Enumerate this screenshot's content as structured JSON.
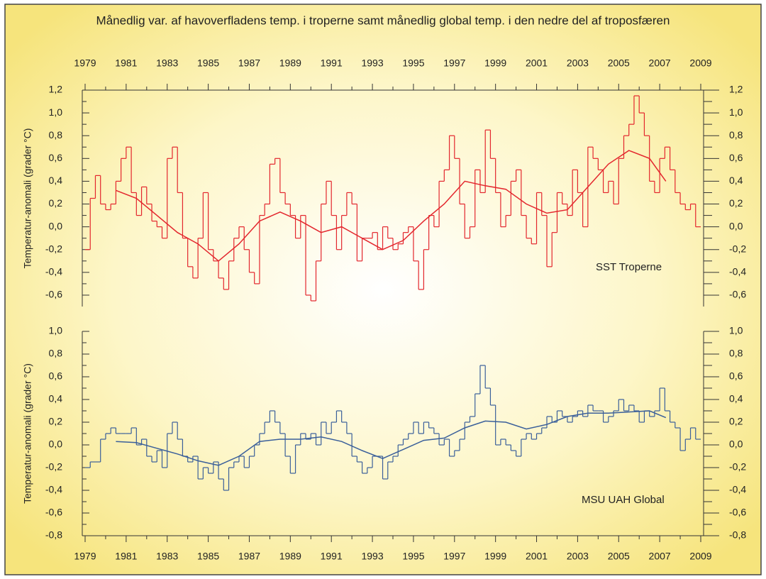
{
  "chart_data": [
    {
      "type": "line",
      "title": "Månedlig var. af havoverfladens temp. i troperne samt månedlig global temp. i den nedre del af troposfæren",
      "y_label": "Temperatur-anomali (grader °C)",
      "xlim": [
        1979,
        2009
      ],
      "xticks": [
        1979,
        1981,
        1983,
        1985,
        1987,
        1989,
        1991,
        1993,
        1995,
        1997,
        1999,
        2001,
        2003,
        2005,
        2007,
        2009
      ],
      "ylim": [
        -0.7,
        1.2
      ],
      "yticks": [
        {
          "value": -0.6,
          "label": "-0,6"
        },
        {
          "value": -0.4,
          "label": "-0,4"
        },
        {
          "value": -0.2,
          "label": "-0,2"
        },
        {
          "value": 0,
          "label": "0,0"
        },
        {
          "value": 0.2,
          "label": "0,2"
        },
        {
          "value": 0.4,
          "label": "0,4"
        },
        {
          "value": 0.6,
          "label": "0,6"
        },
        {
          "value": 0.8,
          "label": "0,8"
        },
        {
          "value": 1.0,
          "label": "1,0"
        },
        {
          "value": 1.2,
          "label": "1,2"
        }
      ],
      "x": [
        1979,
        1979.25,
        1979.5,
        1979.75,
        1980,
        1980.25,
        1980.5,
        1980.75,
        1981,
        1981.25,
        1981.5,
        1981.75,
        1982,
        1982.25,
        1982.5,
        1982.75,
        1983,
        1983.25,
        1983.5,
        1983.75,
        1984,
        1984.25,
        1984.5,
        1984.75,
        1985,
        1985.25,
        1985.5,
        1985.75,
        1986,
        1986.25,
        1986.5,
        1986.75,
        1987,
        1987.25,
        1987.5,
        1987.75,
        1988,
        1988.25,
        1988.5,
        1988.75,
        1989,
        1989.25,
        1989.5,
        1989.75,
        1990,
        1990.25,
        1990.5,
        1990.75,
        1991,
        1991.25,
        1991.5,
        1991.75,
        1992,
        1992.25,
        1992.5,
        1992.75,
        1993,
        1993.25,
        1993.5,
        1993.75,
        1994,
        1994.25,
        1994.5,
        1994.75,
        1995,
        1995.25,
        1995.5,
        1995.75,
        1996,
        1996.25,
        1996.5,
        1996.75,
        1997,
        1997.25,
        1997.5,
        1997.75,
        1998,
        1998.25,
        1998.5,
        1998.75,
        1999,
        1999.25,
        1999.5,
        1999.75,
        2000,
        2000.25,
        2000.5,
        2000.75,
        2001,
        2001.25,
        2001.5,
        2001.75,
        2002,
        2002.25,
        2002.5,
        2002.75,
        2003,
        2003.25,
        2003.5,
        2003.75,
        2004,
        2004.25,
        2004.5,
        2004.75,
        2005,
        2005.25,
        2005.5,
        2005.75,
        2006,
        2006.25,
        2006.5,
        2006.75,
        2007,
        2007.25,
        2007.5,
        2007.75,
        2008,
        2008.25,
        2008.5,
        2008.75
      ],
      "series": [
        {
          "name": "SST Troperne",
          "color": "#e3262d",
          "values": [
            -0.2,
            0.25,
            0.45,
            0.2,
            0.15,
            0.2,
            0.4,
            0.6,
            0.7,
            0.3,
            0.1,
            0.35,
            0.2,
            0.05,
            0.0,
            -0.1,
            0.6,
            0.7,
            0.3,
            -0.1,
            -0.35,
            -0.45,
            -0.1,
            0.3,
            -0.2,
            -0.3,
            -0.45,
            -0.55,
            -0.3,
            -0.1,
            0.0,
            -0.2,
            -0.4,
            -0.5,
            0.1,
            0.2,
            0.55,
            0.6,
            0.3,
            0.2,
            0.1,
            -0.1,
            0.1,
            -0.6,
            -0.65,
            -0.3,
            0.2,
            0.4,
            0.1,
            -0.2,
            0.1,
            0.3,
            0.2,
            -0.3,
            -0.1,
            -0.1,
            -0.05,
            -0.2,
            0.0,
            -0.1,
            -0.2,
            -0.15,
            -0.05,
            0.0,
            -0.3,
            -0.55,
            -0.2,
            0.1,
            0.0,
            0.4,
            0.5,
            0.8,
            0.6,
            0.2,
            -0.1,
            0.0,
            0.5,
            0.3,
            0.85,
            0.6,
            0.3,
            0.0,
            0.1,
            0.4,
            0.5,
            0.1,
            -0.1,
            -0.15,
            0.3,
            0.1,
            -0.35,
            -0.05,
            0.3,
            0.2,
            0.1,
            0.5,
            0.3,
            0.0,
            0.7,
            0.6,
            0.5,
            0.3,
            0.4,
            0.2,
            0.6,
            0.8,
            0.9,
            1.15,
            1.0,
            0.8,
            0.4,
            0.3,
            0.6,
            0.7,
            0.5,
            0.3,
            0.2,
            0.15,
            0.2,
            0.0
          ]
        }
      ],
      "trend": {
        "color": "#e3262d",
        "x": [
          1980.5,
          1981.5,
          1982.5,
          1983.5,
          1984.5,
          1985.5,
          1986.5,
          1987.5,
          1988.5,
          1989.5,
          1990.5,
          1991.5,
          1992.5,
          1993.5,
          1994.5,
          1995.5,
          1996.5,
          1997.5,
          1998.5,
          1999.5,
          2000.5,
          2001.5,
          2002.5,
          2003.5,
          2004.5,
          2005.5,
          2006.5,
          2007.3
        ],
        "values": [
          0.32,
          0.25,
          0.1,
          -0.05,
          -0.15,
          -0.3,
          -0.15,
          0.05,
          0.13,
          0.05,
          -0.05,
          0.0,
          -0.1,
          -0.2,
          -0.12,
          0.05,
          0.2,
          0.4,
          0.36,
          0.33,
          0.2,
          0.12,
          0.15,
          0.35,
          0.55,
          0.67,
          0.6,
          0.4
        ]
      }
    },
    {
      "type": "line",
      "y_label": "Temperatur-anomali (grader °C)",
      "xlim": [
        1979,
        2009
      ],
      "xticks": [
        1979,
        1981,
        1983,
        1985,
        1987,
        1989,
        1991,
        1993,
        1995,
        1997,
        1999,
        2001,
        2003,
        2005,
        2007,
        2009
      ],
      "ylim": [
        -0.8,
        1.0
      ],
      "yticks": [
        {
          "value": -0.8,
          "label": "-0,8"
        },
        {
          "value": -0.6,
          "label": "-0,6"
        },
        {
          "value": -0.4,
          "label": "-0,4"
        },
        {
          "value": -0.2,
          "label": "-0,2"
        },
        {
          "value": 0,
          "label": "0,0"
        },
        {
          "value": 0.2,
          "label": "0,2"
        },
        {
          "value": 0.4,
          "label": "0,4"
        },
        {
          "value": 0.6,
          "label": "0,6"
        },
        {
          "value": 0.8,
          "label": "0,8"
        },
        {
          "value": 1.0,
          "label": "1,0"
        }
      ],
      "x": [
        1979,
        1979.25,
        1979.5,
        1979.75,
        1980,
        1980.25,
        1980.5,
        1980.75,
        1981,
        1981.25,
        1981.5,
        1981.75,
        1982,
        1982.25,
        1982.5,
        1982.75,
        1983,
        1983.25,
        1983.5,
        1983.75,
        1984,
        1984.25,
        1984.5,
        1984.75,
        1985,
        1985.25,
        1985.5,
        1985.75,
        1986,
        1986.25,
        1986.5,
        1986.75,
        1987,
        1987.25,
        1987.5,
        1987.75,
        1988,
        1988.25,
        1988.5,
        1988.75,
        1989,
        1989.25,
        1989.5,
        1989.75,
        1990,
        1990.25,
        1990.5,
        1990.75,
        1991,
        1991.25,
        1991.5,
        1991.75,
        1992,
        1992.25,
        1992.5,
        1992.75,
        1993,
        1993.25,
        1993.5,
        1993.75,
        1994,
        1994.25,
        1994.5,
        1994.75,
        1995,
        1995.25,
        1995.5,
        1995.75,
        1996,
        1996.25,
        1996.5,
        1996.75,
        1997,
        1997.25,
        1997.5,
        1997.75,
        1998,
        1998.25,
        1998.5,
        1998.75,
        1999,
        1999.25,
        1999.5,
        1999.75,
        2000,
        2000.25,
        2000.5,
        2000.75,
        2001,
        2001.25,
        2001.5,
        2001.75,
        2002,
        2002.25,
        2002.5,
        2002.75,
        2003,
        2003.25,
        2003.5,
        2003.75,
        2004,
        2004.25,
        2004.5,
        2004.75,
        2005,
        2005.25,
        2005.5,
        2005.75,
        2006,
        2006.25,
        2006.5,
        2006.75,
        2007,
        2007.25,
        2007.5,
        2007.75,
        2008,
        2008.25,
        2008.5,
        2008.75
      ],
      "series": [
        {
          "name": "MSU UAH Global",
          "color": "#3a5f9a",
          "values": [
            -0.2,
            -0.15,
            -0.15,
            0.05,
            0.1,
            0.15,
            0.1,
            0.1,
            0.1,
            0.15,
            0.0,
            0.05,
            -0.1,
            -0.15,
            -0.05,
            -0.2,
            0.1,
            0.2,
            0.05,
            -0.1,
            -0.15,
            -0.1,
            -0.3,
            -0.2,
            -0.25,
            -0.15,
            -0.3,
            -0.4,
            -0.2,
            -0.15,
            -0.1,
            -0.2,
            -0.1,
            0.0,
            0.1,
            0.2,
            0.3,
            0.2,
            0.1,
            -0.1,
            -0.25,
            0.0,
            0.1,
            0.05,
            0.1,
            0.0,
            0.2,
            0.1,
            0.2,
            0.3,
            0.2,
            0.1,
            -0.1,
            -0.15,
            -0.25,
            -0.2,
            -0.1,
            -0.1,
            -0.3,
            -0.15,
            -0.1,
            0.0,
            0.05,
            0.1,
            0.2,
            0.1,
            0.2,
            0.15,
            0.1,
            0.0,
            0.05,
            -0.1,
            -0.05,
            0.05,
            0.2,
            0.25,
            0.45,
            0.7,
            0.5,
            0.35,
            0.0,
            0.05,
            0.0,
            -0.05,
            -0.1,
            0.05,
            0.1,
            0.05,
            0.1,
            0.15,
            0.25,
            0.2,
            0.3,
            0.25,
            0.2,
            0.25,
            0.3,
            0.25,
            0.35,
            0.3,
            0.3,
            0.2,
            0.25,
            0.3,
            0.4,
            0.3,
            0.35,
            0.3,
            0.2,
            0.3,
            0.25,
            0.3,
            0.5,
            0.3,
            0.2,
            0.15,
            -0.05,
            0.05,
            0.15,
            0.05
          ]
        }
      ],
      "trend": {
        "color": "#3a5f9a",
        "x": [
          1980.5,
          1981.5,
          1982.5,
          1983.5,
          1984.5,
          1985.5,
          1986.5,
          1987.5,
          1988.5,
          1989.5,
          1990.5,
          1991.5,
          1992.5,
          1993.5,
          1994.5,
          1995.5,
          1996.5,
          1997.5,
          1998.5,
          1999.5,
          2000.5,
          2001.5,
          2002.5,
          2003.5,
          2004.5,
          2005.5,
          2006.5,
          2007.3
        ],
        "values": [
          0.03,
          0.02,
          -0.03,
          -0.08,
          -0.14,
          -0.18,
          -0.1,
          0.03,
          0.05,
          0.05,
          0.07,
          0.03,
          -0.05,
          -0.12,
          -0.04,
          0.04,
          0.06,
          0.15,
          0.21,
          0.2,
          0.14,
          0.18,
          0.25,
          0.28,
          0.28,
          0.29,
          0.3,
          0.24
        ]
      }
    }
  ]
}
